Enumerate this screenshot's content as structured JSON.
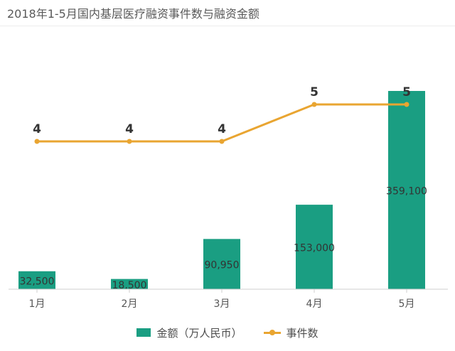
{
  "title": "2018年1-5月国内基层医疗融资事件数与融资金额",
  "colors": {
    "bar": "#1a9e82",
    "line": "#e9a531"
  },
  "chart_data": {
    "type": "bar",
    "title": "2018年1-5月国内基层医疗融资事件数与融资金额",
    "categories": [
      "1月",
      "2月",
      "3月",
      "4月",
      "5月"
    ],
    "series": [
      {
        "name": "金额（万人民币）",
        "type": "bar",
        "values": [
          32500,
          18500,
          90950,
          153000,
          359100
        ],
        "labels": [
          "32,500",
          "18,500",
          "90,950",
          "153,000",
          "359,100"
        ]
      },
      {
        "name": "事件数",
        "type": "line",
        "values": [
          4,
          4,
          4,
          5,
          5
        ],
        "labels": [
          "4",
          "4",
          "4",
          "5",
          "5"
        ]
      }
    ],
    "legend": "bottom",
    "grid": false
  }
}
